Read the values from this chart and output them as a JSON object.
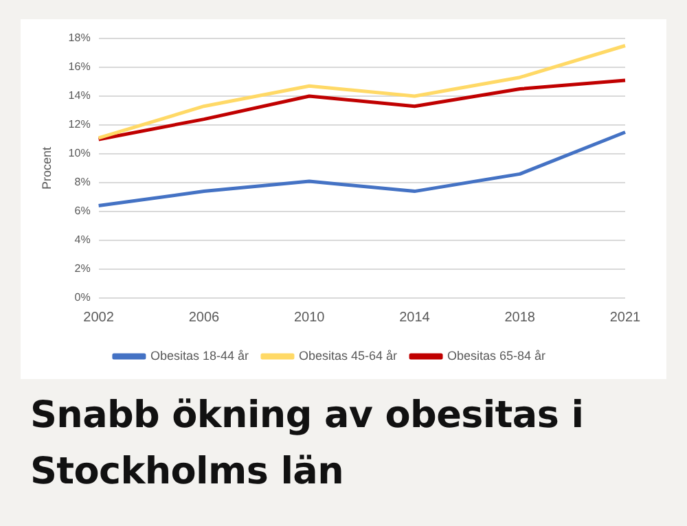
{
  "chart_data": {
    "type": "line",
    "title": "Snabb ökning av obesitas i Stockholms län",
    "ylabel": "Procent",
    "categories": [
      "2002",
      "2006",
      "2010",
      "2014",
      "2018",
      "2021"
    ],
    "series": [
      {
        "name": "Obesitas 18-44 år",
        "color": "#4472c4",
        "values": [
          6.4,
          7.4,
          8.1,
          7.4,
          8.6,
          11.5
        ]
      },
      {
        "name": "Obesitas 45-64 år",
        "color": "#ffd966",
        "values": [
          11.1,
          13.3,
          14.7,
          14.0,
          15.3,
          17.5
        ]
      },
      {
        "name": "Obesitas 65-84 år",
        "color": "#c00000",
        "values": [
          11.0,
          12.4,
          14.0,
          13.3,
          14.5,
          15.1
        ]
      }
    ],
    "ylim": [
      0,
      18
    ],
    "yticks": [
      {
        "value": 0,
        "label": "0%"
      },
      {
        "value": 2,
        "label": "2%"
      },
      {
        "value": 4,
        "label": "4%"
      },
      {
        "value": 6,
        "label": "6%"
      },
      {
        "value": 8,
        "label": "8%"
      },
      {
        "value": 10,
        "label": "10%"
      },
      {
        "value": 12,
        "label": "12%"
      },
      {
        "value": 14,
        "label": "14%"
      },
      {
        "value": 16,
        "label": "16%"
      },
      {
        "value": 18,
        "label": "18%"
      }
    ],
    "grid": "y",
    "legend": "bottom",
    "marker": "none",
    "line_style": "solid"
  }
}
